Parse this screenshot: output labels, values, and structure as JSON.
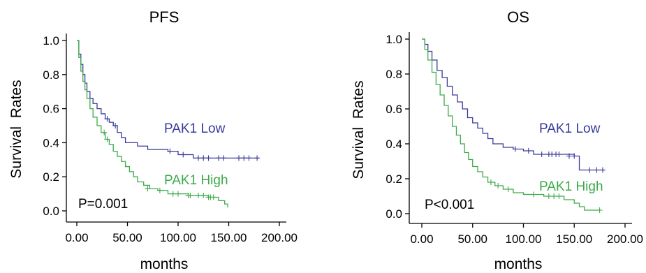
{
  "colors": {
    "low": "#3a3a9c",
    "high": "#3daa4a",
    "axis": "#000000"
  },
  "chart_data": [
    {
      "type": "line",
      "title": "PFS",
      "xlabel": "months",
      "ylabel": "Survival  Rates",
      "xlim": [
        0,
        200
      ],
      "ylim": [
        0,
        1.0
      ],
      "x_ticks": [
        "0.00",
        "50.00",
        "100.00",
        "150.00",
        "200.00"
      ],
      "y_ticks": [
        "0.0",
        "0.2",
        "0.4",
        "0.6",
        "0.8",
        "1.0"
      ],
      "annotation": "P=0.001",
      "series": [
        {
          "name": "PAK1 Low",
          "color": "#3a3a9c",
          "points": [
            [
              0,
              1.0
            ],
            [
              2,
              0.92
            ],
            [
              4,
              0.86
            ],
            [
              6,
              0.8
            ],
            [
              8,
              0.75
            ],
            [
              10,
              0.7
            ],
            [
              13,
              0.66
            ],
            [
              16,
              0.63
            ],
            [
              20,
              0.6
            ],
            [
              24,
              0.57
            ],
            [
              28,
              0.54
            ],
            [
              32,
              0.52
            ],
            [
              36,
              0.5
            ],
            [
              40,
              0.46
            ],
            [
              44,
              0.43
            ],
            [
              48,
              0.4
            ],
            [
              60,
              0.38
            ],
            [
              70,
              0.36
            ],
            [
              90,
              0.35
            ],
            [
              100,
              0.33
            ],
            [
              115,
              0.31
            ],
            [
              180,
              0.31
            ]
          ],
          "censors": [
            [
              30,
              0.54
            ],
            [
              38,
              0.5
            ],
            [
              92,
              0.35
            ],
            [
              105,
              0.33
            ],
            [
              120,
              0.31
            ],
            [
              125,
              0.31
            ],
            [
              130,
              0.31
            ],
            [
              140,
              0.31
            ],
            [
              145,
              0.31
            ],
            [
              160,
              0.31
            ],
            [
              165,
              0.31
            ],
            [
              170,
              0.31
            ],
            [
              178,
              0.31
            ]
          ]
        },
        {
          "name": "PAK1 High",
          "color": "#3daa4a",
          "points": [
            [
              0,
              1.0
            ],
            [
              2,
              0.9
            ],
            [
              4,
              0.82
            ],
            [
              6,
              0.76
            ],
            [
              8,
              0.71
            ],
            [
              10,
              0.66
            ],
            [
              13,
              0.6
            ],
            [
              16,
              0.55
            ],
            [
              20,
              0.5
            ],
            [
              24,
              0.46
            ],
            [
              28,
              0.42
            ],
            [
              32,
              0.39
            ],
            [
              36,
              0.35
            ],
            [
              40,
              0.32
            ],
            [
              44,
              0.29
            ],
            [
              48,
              0.26
            ],
            [
              52,
              0.23
            ],
            [
              56,
              0.2
            ],
            [
              60,
              0.17
            ],
            [
              66,
              0.15
            ],
            [
              72,
              0.13
            ],
            [
              80,
              0.12
            ],
            [
              90,
              0.1
            ],
            [
              110,
              0.09
            ],
            [
              130,
              0.08
            ],
            [
              140,
              0.06
            ],
            [
              146,
              0.04
            ],
            [
              149,
              0.02
            ]
          ],
          "censors": [
            [
              27,
              0.46
            ],
            [
              30,
              0.42
            ],
            [
              70,
              0.13
            ],
            [
              82,
              0.12
            ],
            [
              95,
              0.1
            ],
            [
              100,
              0.1
            ],
            [
              110,
              0.09
            ],
            [
              112,
              0.09
            ],
            [
              120,
              0.09
            ],
            [
              125,
              0.09
            ],
            [
              130,
              0.08
            ],
            [
              132,
              0.08
            ],
            [
              135,
              0.08
            ]
          ]
        }
      ]
    },
    {
      "type": "line",
      "title": "OS",
      "xlabel": "months",
      "ylabel": "Survival  Rates",
      "xlim": [
        0,
        200
      ],
      "ylim": [
        0,
        1.0
      ],
      "x_ticks": [
        "0.00",
        "50.00",
        "100.00",
        "150.00",
        "200.00"
      ],
      "y_ticks": [
        "0.0",
        "0.2",
        "0.4",
        "0.6",
        "0.8",
        "1.0"
      ],
      "annotation": "P<0.001",
      "series": [
        {
          "name": "PAK1 Low",
          "color": "#3a3a9c",
          "points": [
            [
              0,
              1.0
            ],
            [
              3,
              0.97
            ],
            [
              6,
              0.93
            ],
            [
              10,
              0.88
            ],
            [
              15,
              0.82
            ],
            [
              20,
              0.78
            ],
            [
              25,
              0.73
            ],
            [
              30,
              0.68
            ],
            [
              35,
              0.64
            ],
            [
              40,
              0.6
            ],
            [
              45,
              0.55
            ],
            [
              50,
              0.52
            ],
            [
              55,
              0.49
            ],
            [
              60,
              0.46
            ],
            [
              65,
              0.43
            ],
            [
              70,
              0.4
            ],
            [
              80,
              0.38
            ],
            [
              90,
              0.37
            ],
            [
              100,
              0.36
            ],
            [
              110,
              0.34
            ],
            [
              150,
              0.33
            ],
            [
              155,
              0.25
            ],
            [
              180,
              0.25
            ]
          ],
          "censors": [
            [
              92,
              0.37
            ],
            [
              105,
              0.36
            ],
            [
              118,
              0.34
            ],
            [
              125,
              0.34
            ],
            [
              128,
              0.34
            ],
            [
              132,
              0.34
            ],
            [
              135,
              0.34
            ],
            [
              145,
              0.33
            ],
            [
              150,
              0.33
            ],
            [
              165,
              0.25
            ],
            [
              172,
              0.25
            ],
            [
              178,
              0.25
            ]
          ]
        },
        {
          "name": "PAK1 High",
          "color": "#3daa4a",
          "points": [
            [
              0,
              1.0
            ],
            [
              3,
              0.94
            ],
            [
              6,
              0.88
            ],
            [
              10,
              0.81
            ],
            [
              14,
              0.74
            ],
            [
              18,
              0.68
            ],
            [
              22,
              0.62
            ],
            [
              26,
              0.56
            ],
            [
              30,
              0.5
            ],
            [
              34,
              0.45
            ],
            [
              38,
              0.4
            ],
            [
              42,
              0.35
            ],
            [
              46,
              0.31
            ],
            [
              50,
              0.27
            ],
            [
              55,
              0.24
            ],
            [
              60,
              0.21
            ],
            [
              65,
              0.18
            ],
            [
              72,
              0.16
            ],
            [
              80,
              0.14
            ],
            [
              90,
              0.12
            ],
            [
              100,
              0.11
            ],
            [
              120,
              0.1
            ],
            [
              140,
              0.08
            ],
            [
              150,
              0.06
            ],
            [
              155,
              0.04
            ],
            [
              160,
              0.02
            ],
            [
              175,
              0.02
            ]
          ],
          "censors": [
            [
              68,
              0.18
            ],
            [
              75,
              0.16
            ],
            [
              85,
              0.14
            ],
            [
              110,
              0.11
            ],
            [
              125,
              0.1
            ],
            [
              130,
              0.1
            ],
            [
              135,
              0.1
            ],
            [
              175,
              0.02
            ]
          ]
        }
      ]
    }
  ]
}
